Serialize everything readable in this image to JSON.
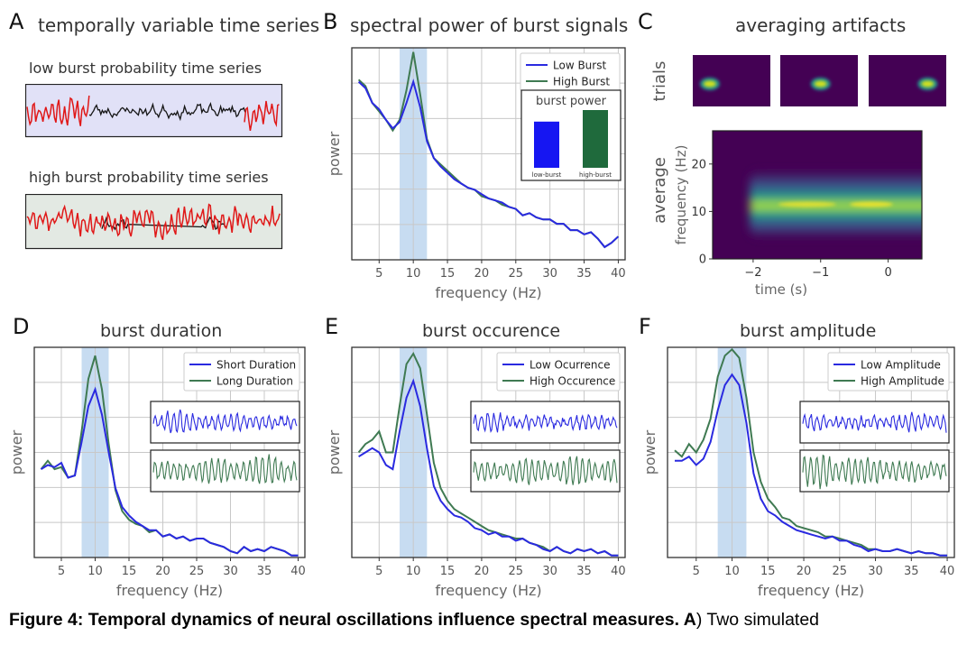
{
  "panel_a": {
    "label": "A",
    "title": "temporally variable time series",
    "low_title": "low burst probability time series",
    "high_title": "high burst probability time series",
    "low_bg": "#e1e1f7",
    "high_bg": "#e3e9e3"
  },
  "panel_b": {
    "label": "B",
    "title": "spectral power of burst signals"
  },
  "panel_c": {
    "label": "C",
    "title": "averaging artifacts",
    "trials_label": "trials",
    "average_label": "average"
  },
  "panel_d": {
    "label": "D",
    "title": "burst duration"
  },
  "panel_e": {
    "label": "E",
    "title": "burst occurence"
  },
  "panel_f": {
    "label": "F",
    "title": "burst amplitude"
  },
  "caption": {
    "bold": "Figure 4: Temporal dynamics of neural oscillations influence spectral measures. A",
    "rest": ") Two simulated"
  },
  "colors": {
    "blue": "#2a2ae0",
    "green": "#3f7a52",
    "red": "#e01818",
    "black": "#151515",
    "band": "#c7dcf1"
  },
  "chart_data": [
    {
      "id": "B",
      "type": "line",
      "title": "spectral power of burst signals",
      "xlabel": "frequency (Hz)",
      "ylabel": "power",
      "xticks": [
        5,
        10,
        15,
        20,
        25,
        30,
        35,
        40
      ],
      "xlim": [
        1,
        41
      ],
      "ylim": [
        0,
        1
      ],
      "band": [
        8,
        12
      ],
      "x": [
        2,
        3,
        4,
        5,
        6,
        7,
        8,
        9,
        10,
        11,
        12,
        13,
        14,
        15,
        16,
        17,
        18,
        19,
        20,
        21,
        22,
        23,
        24,
        25,
        26,
        27,
        28,
        29,
        30,
        31,
        32,
        33,
        34,
        35,
        36,
        37,
        38,
        39,
        40
      ],
      "series": [
        {
          "name": "Low Burst",
          "color": "#2a2ae0",
          "values": [
            0.84,
            0.81,
            0.74,
            0.71,
            0.66,
            0.62,
            0.65,
            0.74,
            0.84,
            0.72,
            0.56,
            0.48,
            0.44,
            0.41,
            0.38,
            0.36,
            0.34,
            0.33,
            0.31,
            0.29,
            0.28,
            0.27,
            0.25,
            0.24,
            0.21,
            0.22,
            0.2,
            0.19,
            0.19,
            0.17,
            0.17,
            0.14,
            0.14,
            0.12,
            0.13,
            0.1,
            0.06,
            0.08,
            0.11
          ]
        },
        {
          "name": "High Burst",
          "color": "#3f7a52",
          "values": [
            0.85,
            0.82,
            0.74,
            0.7,
            0.66,
            0.61,
            0.66,
            0.8,
            0.98,
            0.78,
            0.57,
            0.48,
            0.45,
            0.42,
            0.39,
            0.36,
            0.34,
            0.33,
            0.3,
            0.29,
            0.28,
            0.26,
            0.25,
            0.24,
            0.21,
            0.22,
            0.2,
            0.19,
            0.19,
            0.17,
            0.17,
            0.14,
            0.14,
            0.12,
            0.13,
            0.1,
            0.06,
            0.08,
            0.11
          ]
        }
      ],
      "inset": {
        "title": "burst power",
        "categories": [
          "low-burst",
          "high-burst"
        ],
        "values": [
          0.8,
          1.0
        ],
        "colors": [
          "#1616f2",
          "#1f6a3c"
        ]
      }
    },
    {
      "id": "C",
      "type": "heatmap",
      "xlabel": "time (s)",
      "ylabel": "frequency (Hz)",
      "xticks": [
        -2,
        -1,
        0
      ],
      "yticks": [
        0,
        10,
        20
      ],
      "xlim": [
        -2.6,
        0.5
      ],
      "ylim": [
        0,
        27
      ],
      "band_center_hz": 11.5,
      "trial_burst_positions": [
        0.25,
        0.55,
        0.85
      ]
    },
    {
      "id": "D",
      "type": "line",
      "title": "burst duration",
      "xlabel": "frequency (Hz)",
      "ylabel": "power",
      "xticks": [
        5,
        10,
        15,
        20,
        25,
        30,
        35,
        40
      ],
      "xlim": [
        1,
        41
      ],
      "ylim": [
        0,
        1
      ],
      "band": [
        8,
        12
      ],
      "x": [
        2,
        3,
        4,
        5,
        6,
        7,
        8,
        9,
        10,
        11,
        12,
        13,
        14,
        15,
        16,
        17,
        18,
        19,
        20,
        21,
        22,
        23,
        24,
        25,
        26,
        27,
        28,
        29,
        30,
        31,
        32,
        33,
        34,
        35,
        36,
        37,
        38,
        39,
        40
      ],
      "series": [
        {
          "name": "Short Duration",
          "color": "#2a2ae0",
          "values": [
            0.42,
            0.44,
            0.43,
            0.45,
            0.38,
            0.39,
            0.55,
            0.72,
            0.8,
            0.68,
            0.5,
            0.33,
            0.24,
            0.2,
            0.17,
            0.15,
            0.13,
            0.13,
            0.1,
            0.11,
            0.09,
            0.1,
            0.08,
            0.09,
            0.09,
            0.07,
            0.06,
            0.05,
            0.03,
            0.02,
            0.05,
            0.03,
            0.04,
            0.03,
            0.05,
            0.04,
            0.03,
            0.01,
            0.01
          ]
        },
        {
          "name": "Long Duration",
          "color": "#3f7a52",
          "values": [
            0.42,
            0.46,
            0.42,
            0.43,
            0.38,
            0.39,
            0.6,
            0.85,
            0.96,
            0.8,
            0.54,
            0.32,
            0.22,
            0.18,
            0.16,
            0.15,
            0.12,
            0.13,
            0.1,
            0.11,
            0.09,
            0.1,
            0.08,
            0.09,
            0.09,
            0.07,
            0.06,
            0.05,
            0.03,
            0.02,
            0.05,
            0.03,
            0.04,
            0.03,
            0.05,
            0.04,
            0.03,
            0.01,
            0.01
          ]
        }
      ],
      "insets": [
        "Short Duration trace",
        "Long Duration trace"
      ]
    },
    {
      "id": "E",
      "type": "line",
      "title": "burst occurence",
      "xlabel": "frequency (Hz)",
      "ylabel": "power",
      "xticks": [
        5,
        10,
        15,
        20,
        25,
        30,
        35,
        40
      ],
      "xlim": [
        1,
        41
      ],
      "ylim": [
        0,
        1
      ],
      "band": [
        8,
        12
      ],
      "x": [
        2,
        3,
        4,
        5,
        6,
        7,
        8,
        9,
        10,
        11,
        12,
        13,
        14,
        15,
        16,
        17,
        18,
        19,
        20,
        21,
        22,
        23,
        24,
        25,
        26,
        27,
        28,
        29,
        30,
        31,
        32,
        33,
        34,
        35,
        36,
        37,
        38,
        39,
        40
      ],
      "series": [
        {
          "name": "Low Ocurrence",
          "color": "#2a2ae0",
          "values": [
            0.48,
            0.5,
            0.52,
            0.5,
            0.44,
            0.42,
            0.6,
            0.76,
            0.84,
            0.72,
            0.52,
            0.34,
            0.27,
            0.23,
            0.2,
            0.19,
            0.17,
            0.14,
            0.13,
            0.11,
            0.12,
            0.1,
            0.1,
            0.08,
            0.09,
            0.07,
            0.06,
            0.04,
            0.03,
            0.05,
            0.03,
            0.02,
            0.04,
            0.03,
            0.04,
            0.02,
            0.03,
            0.01,
            0.01
          ]
        },
        {
          "name": "High Occurence",
          "color": "#3f7a52",
          "values": [
            0.5,
            0.54,
            0.56,
            0.6,
            0.5,
            0.5,
            0.72,
            0.92,
            0.97,
            0.9,
            0.68,
            0.45,
            0.33,
            0.27,
            0.23,
            0.21,
            0.19,
            0.17,
            0.15,
            0.13,
            0.12,
            0.11,
            0.1,
            0.09,
            0.09,
            0.07,
            0.06,
            0.05,
            0.03,
            0.05,
            0.03,
            0.02,
            0.04,
            0.03,
            0.04,
            0.02,
            0.03,
            0.01,
            0.01
          ]
        }
      ],
      "insets": [
        "Low Ocurrence trace",
        "High Occurence trace"
      ]
    },
    {
      "id": "F",
      "type": "line",
      "title": "burst amplitude",
      "xlabel": "frequency (Hz)",
      "ylabel": "power",
      "xticks": [
        5,
        10,
        15,
        20,
        25,
        30,
        35,
        40
      ],
      "xlim": [
        1,
        41
      ],
      "ylim": [
        0,
        1
      ],
      "band": [
        8,
        12
      ],
      "x": [
        2,
        3,
        4,
        5,
        6,
        7,
        8,
        9,
        10,
        11,
        12,
        13,
        14,
        15,
        16,
        17,
        18,
        19,
        20,
        21,
        22,
        23,
        24,
        25,
        26,
        27,
        28,
        29,
        30,
        31,
        32,
        33,
        34,
        35,
        36,
        37,
        38,
        39,
        40
      ],
      "series": [
        {
          "name": "Low Amplitude",
          "color": "#2a2ae0",
          "values": [
            0.46,
            0.46,
            0.48,
            0.44,
            0.47,
            0.55,
            0.7,
            0.82,
            0.87,
            0.82,
            0.64,
            0.4,
            0.28,
            0.22,
            0.2,
            0.17,
            0.15,
            0.13,
            0.12,
            0.11,
            0.1,
            0.09,
            0.1,
            0.08,
            0.08,
            0.06,
            0.05,
            0.03,
            0.04,
            0.03,
            0.03,
            0.04,
            0.03,
            0.02,
            0.03,
            0.02,
            0.02,
            0.01,
            0.01
          ]
        },
        {
          "name": "High Amplitude",
          "color": "#3f7a52",
          "values": [
            0.51,
            0.48,
            0.54,
            0.5,
            0.56,
            0.66,
            0.86,
            0.96,
            0.99,
            0.95,
            0.76,
            0.5,
            0.36,
            0.28,
            0.24,
            0.19,
            0.18,
            0.15,
            0.14,
            0.13,
            0.12,
            0.1,
            0.1,
            0.09,
            0.08,
            0.07,
            0.06,
            0.04,
            0.04,
            0.03,
            0.03,
            0.04,
            0.03,
            0.02,
            0.03,
            0.02,
            0.02,
            0.01,
            0.01
          ]
        }
      ],
      "insets": [
        "Low Amplitude trace",
        "High Amplitude trace"
      ]
    }
  ]
}
